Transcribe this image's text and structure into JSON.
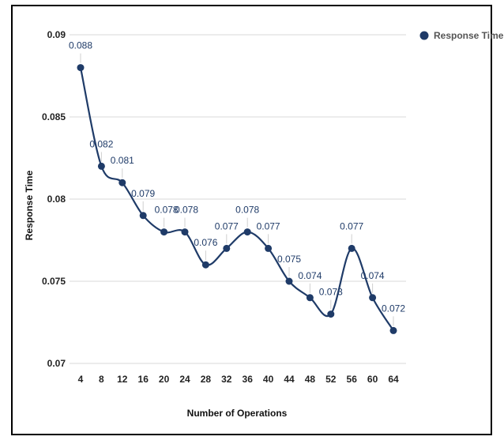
{
  "chart_data": {
    "type": "line",
    "title": "",
    "xlabel": "Number of Operations",
    "ylabel": "Response Time",
    "x": [
      4,
      8,
      12,
      16,
      20,
      24,
      28,
      32,
      36,
      40,
      44,
      48,
      52,
      56,
      60,
      64
    ],
    "series": [
      {
        "name": "Response Time",
        "values": [
          0.088,
          0.082,
          0.081,
          0.079,
          0.078,
          0.078,
          0.076,
          0.077,
          0.078,
          0.077,
          0.075,
          0.074,
          0.073,
          0.077,
          0.074,
          0.072
        ],
        "color": "#1f3b68"
      }
    ],
    "data_labels": [
      "0.088",
      "0.082",
      "0.081",
      "0.079",
      "0.078",
      "0.078",
      "0.076",
      "0.077",
      "0.078",
      "0.077",
      "0.075",
      "0.074",
      "0.073",
      "0.077",
      "0.074",
      "0.072"
    ],
    "y_ticks": [
      "0.07",
      "0.075",
      "0.08",
      "0.085",
      "0.09"
    ],
    "ylim": [
      0.07,
      0.09
    ],
    "grid": true,
    "legend": "top-right",
    "line_style": "smooth",
    "colors": {
      "series": "#1f3b68",
      "grid": "#d9d9d9",
      "frame": "#000000"
    }
  }
}
